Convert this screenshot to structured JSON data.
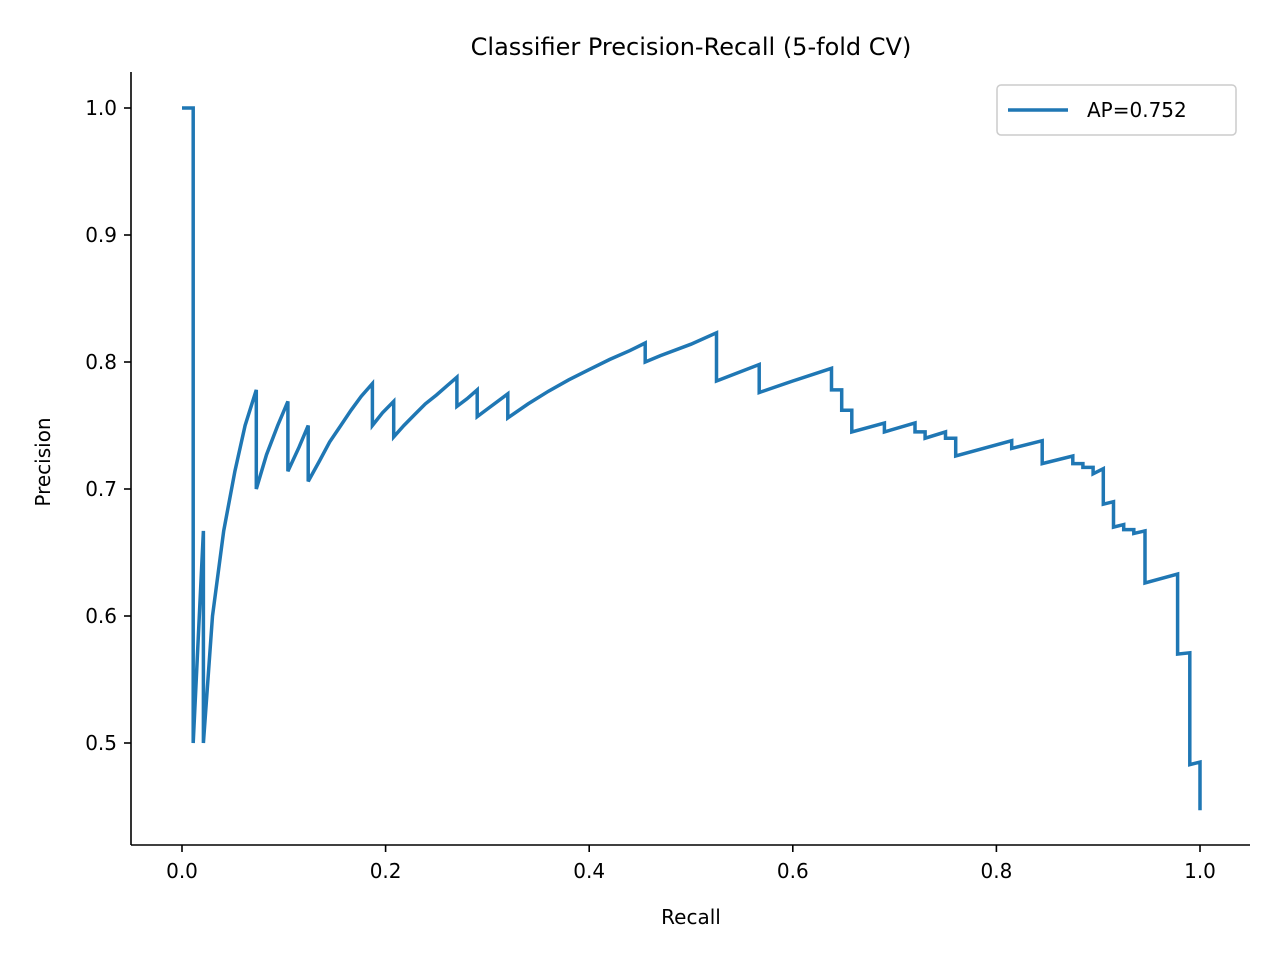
{
  "chart_data": {
    "type": "line",
    "title": "Classifier Precision-Recall (5-fold CV)",
    "xlabel": "Recall",
    "ylabel": "Precision",
    "xlim": [
      -0.05,
      1.05
    ],
    "ylim": [
      0.42,
      1.03
    ],
    "xticks": [
      0.0,
      0.2,
      0.4,
      0.6,
      0.8,
      1.0
    ],
    "xtick_labels": [
      "0.0",
      "0.2",
      "0.4",
      "0.6",
      "0.8",
      "1.0"
    ],
    "yticks": [
      0.5,
      0.6,
      0.7,
      0.8,
      0.9,
      1.0
    ],
    "ytick_labels": [
      "0.5",
      "0.6",
      "0.7",
      "0.8",
      "0.9",
      "1.0"
    ],
    "grid": false,
    "legend_position": "top-right",
    "series": [
      {
        "name": "AP=0.752",
        "color": "#1f77b4",
        "x": [
          0.0,
          0.011,
          0.011,
          0.021,
          0.021,
          0.03,
          0.041,
          0.052,
          0.062,
          0.073,
          0.073,
          0.083,
          0.094,
          0.104,
          0.104,
          0.115,
          0.124,
          0.124,
          0.135,
          0.145,
          0.156,
          0.166,
          0.176,
          0.187,
          0.187,
          0.197,
          0.208,
          0.208,
          0.218,
          0.229,
          0.239,
          0.25,
          0.26,
          0.27,
          0.27,
          0.28,
          0.29,
          0.29,
          0.3,
          0.32,
          0.32,
          0.34,
          0.36,
          0.38,
          0.4,
          0.42,
          0.44,
          0.455,
          0.455,
          0.47,
          0.5,
          0.525,
          0.525,
          0.567,
          0.567,
          0.6,
          0.638,
          0.638,
          0.648,
          0.648,
          0.658,
          0.658,
          0.69,
          0.69,
          0.72,
          0.72,
          0.73,
          0.73,
          0.75,
          0.75,
          0.76,
          0.76,
          0.815,
          0.815,
          0.845,
          0.845,
          0.875,
          0.875,
          0.885,
          0.885,
          0.895,
          0.895,
          0.905,
          0.905,
          0.915,
          0.915,
          0.925,
          0.925,
          0.935,
          0.935,
          0.946,
          0.946,
          0.978,
          0.978,
          0.99,
          0.99,
          1.0,
          1.0
        ],
        "y": [
          1.0,
          1.0,
          0.5,
          0.667,
          0.5,
          0.6,
          0.667,
          0.714,
          0.75,
          0.778,
          0.7,
          0.727,
          0.75,
          0.769,
          0.714,
          0.733,
          0.75,
          0.706,
          0.722,
          0.737,
          0.75,
          0.762,
          0.773,
          0.783,
          0.75,
          0.76,
          0.769,
          0.741,
          0.75,
          0.759,
          0.767,
          0.774,
          0.781,
          0.788,
          0.765,
          0.771,
          0.778,
          0.757,
          0.763,
          0.775,
          0.756,
          0.767,
          0.777,
          0.786,
          0.794,
          0.802,
          0.809,
          0.815,
          0.8,
          0.805,
          0.814,
          0.823,
          0.785,
          0.798,
          0.776,
          0.785,
          0.795,
          0.778,
          0.778,
          0.762,
          0.762,
          0.745,
          0.752,
          0.745,
          0.752,
          0.745,
          0.745,
          0.74,
          0.745,
          0.74,
          0.74,
          0.726,
          0.738,
          0.732,
          0.738,
          0.72,
          0.726,
          0.72,
          0.72,
          0.717,
          0.717,
          0.712,
          0.716,
          0.688,
          0.69,
          0.67,
          0.672,
          0.668,
          0.668,
          0.665,
          0.667,
          0.626,
          0.633,
          0.57,
          0.571,
          0.483,
          0.485,
          0.447
        ]
      }
    ]
  }
}
